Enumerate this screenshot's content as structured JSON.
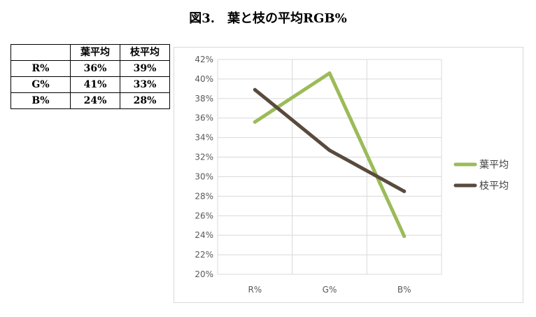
{
  "figure_title": "図3.　葉と枝の平均RGB%",
  "table": {
    "header": [
      "",
      "葉平均",
      "枝平均"
    ],
    "rows": [
      {
        "label": "R%",
        "values": [
          "36%",
          "39%"
        ]
      },
      {
        "label": "G%",
        "values": [
          "41%",
          "33%"
        ]
      },
      {
        "label": "B%",
        "values": [
          "24%",
          "28%"
        ]
      }
    ]
  },
  "chart_data": {
    "type": "line",
    "categories": [
      "R%",
      "G%",
      "B%"
    ],
    "series": [
      {
        "name": "葉平均",
        "values": [
          35.6,
          40.6,
          23.9
        ],
        "color": "#9bbb59"
      },
      {
        "name": "枝平均",
        "values": [
          38.9,
          32.7,
          28.5
        ],
        "color": "#594a3e"
      }
    ],
    "ylim": [
      20,
      42
    ],
    "yticks": [
      "20%",
      "22%",
      "24%",
      "26%",
      "28%",
      "30%",
      "32%",
      "34%",
      "36%",
      "38%",
      "40%",
      "42%"
    ],
    "ytick_values": [
      20,
      22,
      24,
      26,
      28,
      30,
      32,
      34,
      36,
      38,
      40,
      42
    ],
    "grid": true,
    "legend_position": "right",
    "colors": {
      "grid": "#d9d9d9",
      "tick_text": "#595959"
    }
  }
}
